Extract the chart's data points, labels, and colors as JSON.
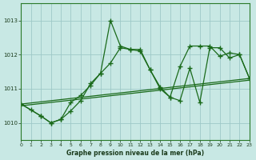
{
  "title": "Graphe pression niveau de la mer (hPa)",
  "bg_color": "#c8e8e4",
  "grid_color": "#9dc8c8",
  "line_color": "#1a6a1a",
  "xlim": [
    0,
    23
  ],
  "ylim": [
    1009.5,
    1013.5
  ],
  "yticks": [
    1010,
    1011,
    1012,
    1013
  ],
  "xticks": [
    0,
    1,
    2,
    3,
    4,
    5,
    6,
    7,
    8,
    9,
    10,
    11,
    12,
    13,
    14,
    15,
    16,
    17,
    18,
    19,
    20,
    21,
    22,
    23
  ],
  "trend0_x": [
    0,
    23
  ],
  "trend0_y": [
    1010.55,
    1011.3
  ],
  "trend1_x": [
    0,
    23
  ],
  "trend1_y": [
    1010.5,
    1011.25
  ],
  "main_x": [
    0,
    1,
    2,
    3,
    4,
    5,
    6,
    7,
    8,
    9,
    10,
    11,
    12,
    13,
    14,
    15,
    16,
    17,
    18,
    19,
    20,
    21,
    22,
    23
  ],
  "main_y": [
    1010.55,
    1010.38,
    1010.2,
    1010.0,
    1010.1,
    1010.6,
    1010.8,
    1011.1,
    1011.45,
    1013.0,
    1012.25,
    1012.15,
    1012.15,
    1011.55,
    1011.05,
    1010.75,
    1010.65,
    1011.6,
    1010.6,
    1012.2,
    1012.2,
    1011.9,
    1012.0,
    1011.3
  ],
  "line2_x": [
    0,
    2,
    3,
    4,
    5,
    6,
    7,
    8,
    9,
    10,
    11,
    12,
    13,
    14,
    15,
    16,
    17,
    18,
    19,
    20,
    21,
    22,
    23
  ],
  "line2_y": [
    1010.55,
    1010.2,
    1010.0,
    1010.1,
    1010.35,
    1010.65,
    1011.15,
    1011.45,
    1011.75,
    1012.2,
    1012.15,
    1012.1,
    1011.55,
    1011.0,
    1010.75,
    1011.65,
    1012.25,
    1012.25,
    1012.25,
    1011.95,
    1012.05,
    1012.0,
    1011.3
  ]
}
